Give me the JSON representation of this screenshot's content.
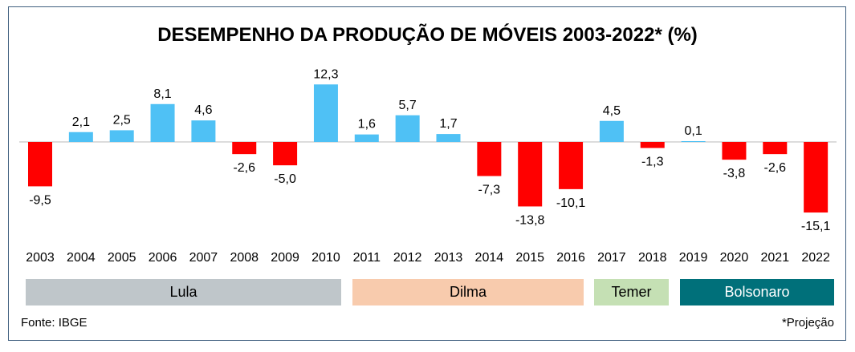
{
  "chart_data": {
    "type": "bar",
    "title": "DESEMPENHO DA PRODUÇÃO DE MÓVEIS 2003-2022* (%)",
    "categories": [
      "2003",
      "2004",
      "2005",
      "2006",
      "2007",
      "2008",
      "2009",
      "2010",
      "2011",
      "2012",
      "2013",
      "2014",
      "2015",
      "2016",
      "2017",
      "2018",
      "2019",
      "2020",
      "2021",
      "2022"
    ],
    "values": [
      -9.5,
      2.1,
      2.5,
      8.1,
      4.6,
      -2.6,
      -5.0,
      12.3,
      1.6,
      5.7,
      1.7,
      -7.3,
      -13.8,
      -10.1,
      4.5,
      -1.3,
      0.1,
      -3.8,
      -2.6,
      -15.1
    ],
    "labels": [
      "-9,5",
      "2,1",
      "2,5",
      "8,1",
      "4,6",
      "-2,6",
      "-5,0",
      "12,3",
      "1,6",
      "5,7",
      "1,7",
      "-7,3",
      "-13,8",
      "-10,1",
      "4,5",
      "-1,3",
      "0,1",
      "-3,8",
      "-2,6",
      "-15,1"
    ],
    "positive_color": "#4fc1f5",
    "negative_color": "#ff0000",
    "ylim": [
      -16,
      13
    ],
    "grid": false
  },
  "periods": [
    {
      "label": "Lula",
      "from": "2003",
      "to": "2010",
      "color": "#bfc6ca",
      "text_color": "#000000"
    },
    {
      "label": "Dilma",
      "from": "2011",
      "to": "2016",
      "color": "#f8cbad",
      "text_color": "#000000"
    },
    {
      "label": "Temer",
      "from": "2017",
      "to": "2018",
      "color": "#c5e0b4",
      "text_color": "#000000"
    },
    {
      "label": "Bolsonaro",
      "from": "2019",
      "to": "2022",
      "color": "#00707a",
      "text_color": "#ffffff"
    }
  ],
  "footer": {
    "source": "Fonte: IBGE",
    "note": "*Projeção"
  }
}
